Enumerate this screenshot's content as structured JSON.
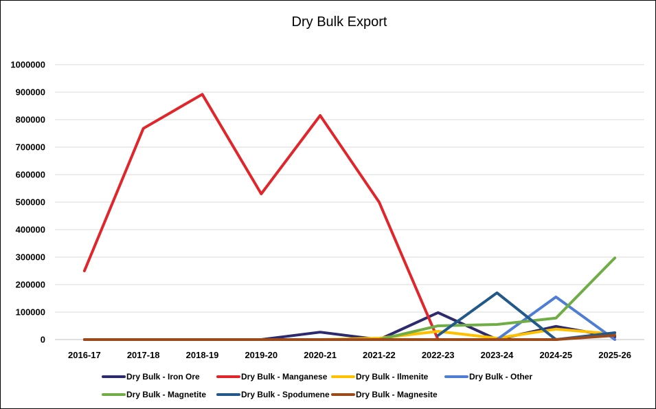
{
  "chart_data": {
    "type": "line",
    "title": "Dry Bulk Export",
    "xlabel": "",
    "ylabel": "",
    "ylim": [
      0,
      1000000
    ],
    "yticks": [
      "1000000",
      "900000",
      "800000",
      "700000",
      "600000",
      "500000",
      "400000",
      "300000",
      "200000",
      "100000",
      "0"
    ],
    "categories": [
      "2016-17",
      "2017-18",
      "2018-19",
      "2019-20",
      "2020-21",
      "2021-22",
      "2022-23",
      "2023-24",
      "2024-25",
      "2025-26"
    ],
    "grid": true,
    "legend_position": "bottom",
    "series": [
      {
        "name": "Dry Bulk - Iron Ore",
        "color": "#2e2a6e",
        "values": [
          0,
          0,
          0,
          0,
          27000,
          0,
          98000,
          0,
          48000,
          10000
        ]
      },
      {
        "name": "Dry Bulk - Manganese",
        "color": "#e0262b",
        "values": [
          250000,
          768000,
          892000,
          530000,
          815000,
          500000,
          0,
          null,
          null,
          null
        ]
      },
      {
        "name": "Dry Bulk - Ilmenite",
        "color": "#ffc000",
        "values": [
          0,
          0,
          0,
          0,
          0,
          5000,
          30000,
          5000,
          38000,
          20000
        ]
      },
      {
        "name": "Dry Bulk - Other",
        "color": "#4f7dd6",
        "values": [
          null,
          null,
          null,
          null,
          null,
          null,
          null,
          0,
          155000,
          0
        ]
      },
      {
        "name": "Dry Bulk - Magnetite",
        "color": "#70ad47",
        "values": [
          null,
          null,
          null,
          null,
          null,
          0,
          50000,
          55000,
          78000,
          297000
        ]
      },
      {
        "name": "Dry Bulk - Spodumene",
        "color": "#22598a",
        "values": [
          null,
          null,
          null,
          null,
          null,
          null,
          15000,
          170000,
          0,
          25000
        ]
      },
      {
        "name": "Dry Bulk - Magnesite",
        "color": "#9c4a1a",
        "values": [
          0,
          0,
          0,
          0,
          0,
          0,
          0,
          0,
          0,
          15000
        ]
      }
    ]
  }
}
